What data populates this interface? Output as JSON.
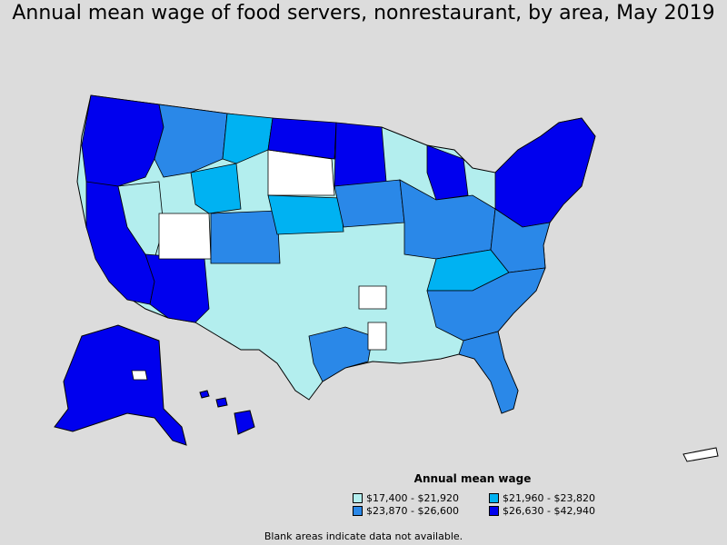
{
  "title": "Annual mean wage of food servers, nonrestaurant, by area, May 2019",
  "legend": {
    "title": "Annual mean wage",
    "items": [
      {
        "label": "$17,400 - $21,920",
        "color": "#b3eeee"
      },
      {
        "label": "$21,960 - $23,820",
        "color": "#00b2f2"
      },
      {
        "label": "$23,870 - $26,600",
        "color": "#2a88e8"
      },
      {
        "label": "$26,630 - $42,940",
        "color": "#0000ee"
      }
    ]
  },
  "note": "Blank areas indicate data not available.",
  "colors": {
    "background": "#dcdcdc",
    "blank": "#ffffff",
    "outline": "#000000"
  }
}
